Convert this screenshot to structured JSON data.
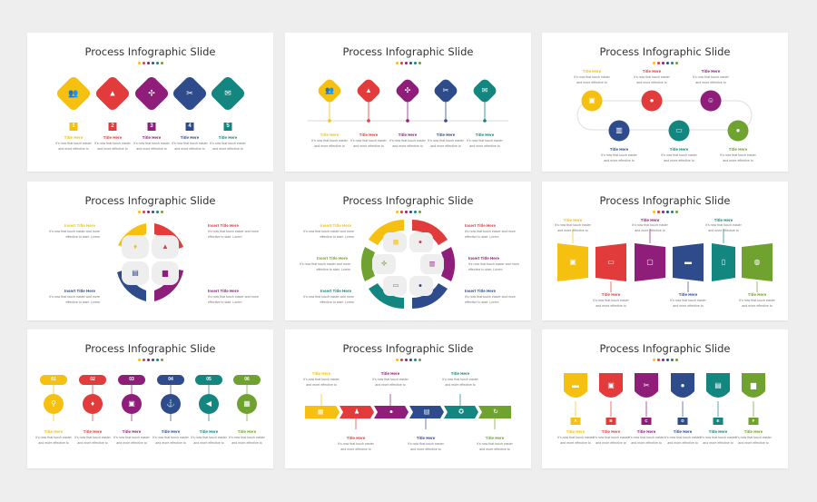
{
  "slide_title": "Process Infographic Slide",
  "title_here": "Title Here",
  "insert_title_here": "Insert Title Here",
  "body_text": "It's now that touch easier and more effective to",
  "body_text_short": "It's now that touch easier and more effective to start. Lorem",
  "numbers": [
    "1",
    "2",
    "3",
    "4",
    "5"
  ],
  "pill_numbers": [
    "01",
    "02",
    "03",
    "04",
    "05",
    "06"
  ],
  "letters": [
    "A",
    "B",
    "C",
    "D",
    "E",
    "F"
  ],
  "colors": {
    "yellow": "#F5C010",
    "red": "#E23B3B",
    "purple": "#8E1E7A",
    "blue": "#2E4C8C",
    "teal": "#13867F",
    "green": "#6FA22E",
    "background": "#eeeeee",
    "card": "#ffffff"
  },
  "icons": [
    "team-icon",
    "org-chart-icon",
    "network-icon",
    "tools-icon",
    "envelope-icon",
    "user-icon",
    "presentation-icon",
    "bar-chart-icon",
    "credit-card-icon",
    "money-bag-icon",
    "lightbulb-icon",
    "document-icon",
    "briefcase-icon",
    "search-icon",
    "anchor-icon",
    "megaphone-icon",
    "calendar-icon",
    "award-icon",
    "refresh-icon",
    "laptop-icon",
    "truck-icon",
    "globe-icon"
  ]
}
